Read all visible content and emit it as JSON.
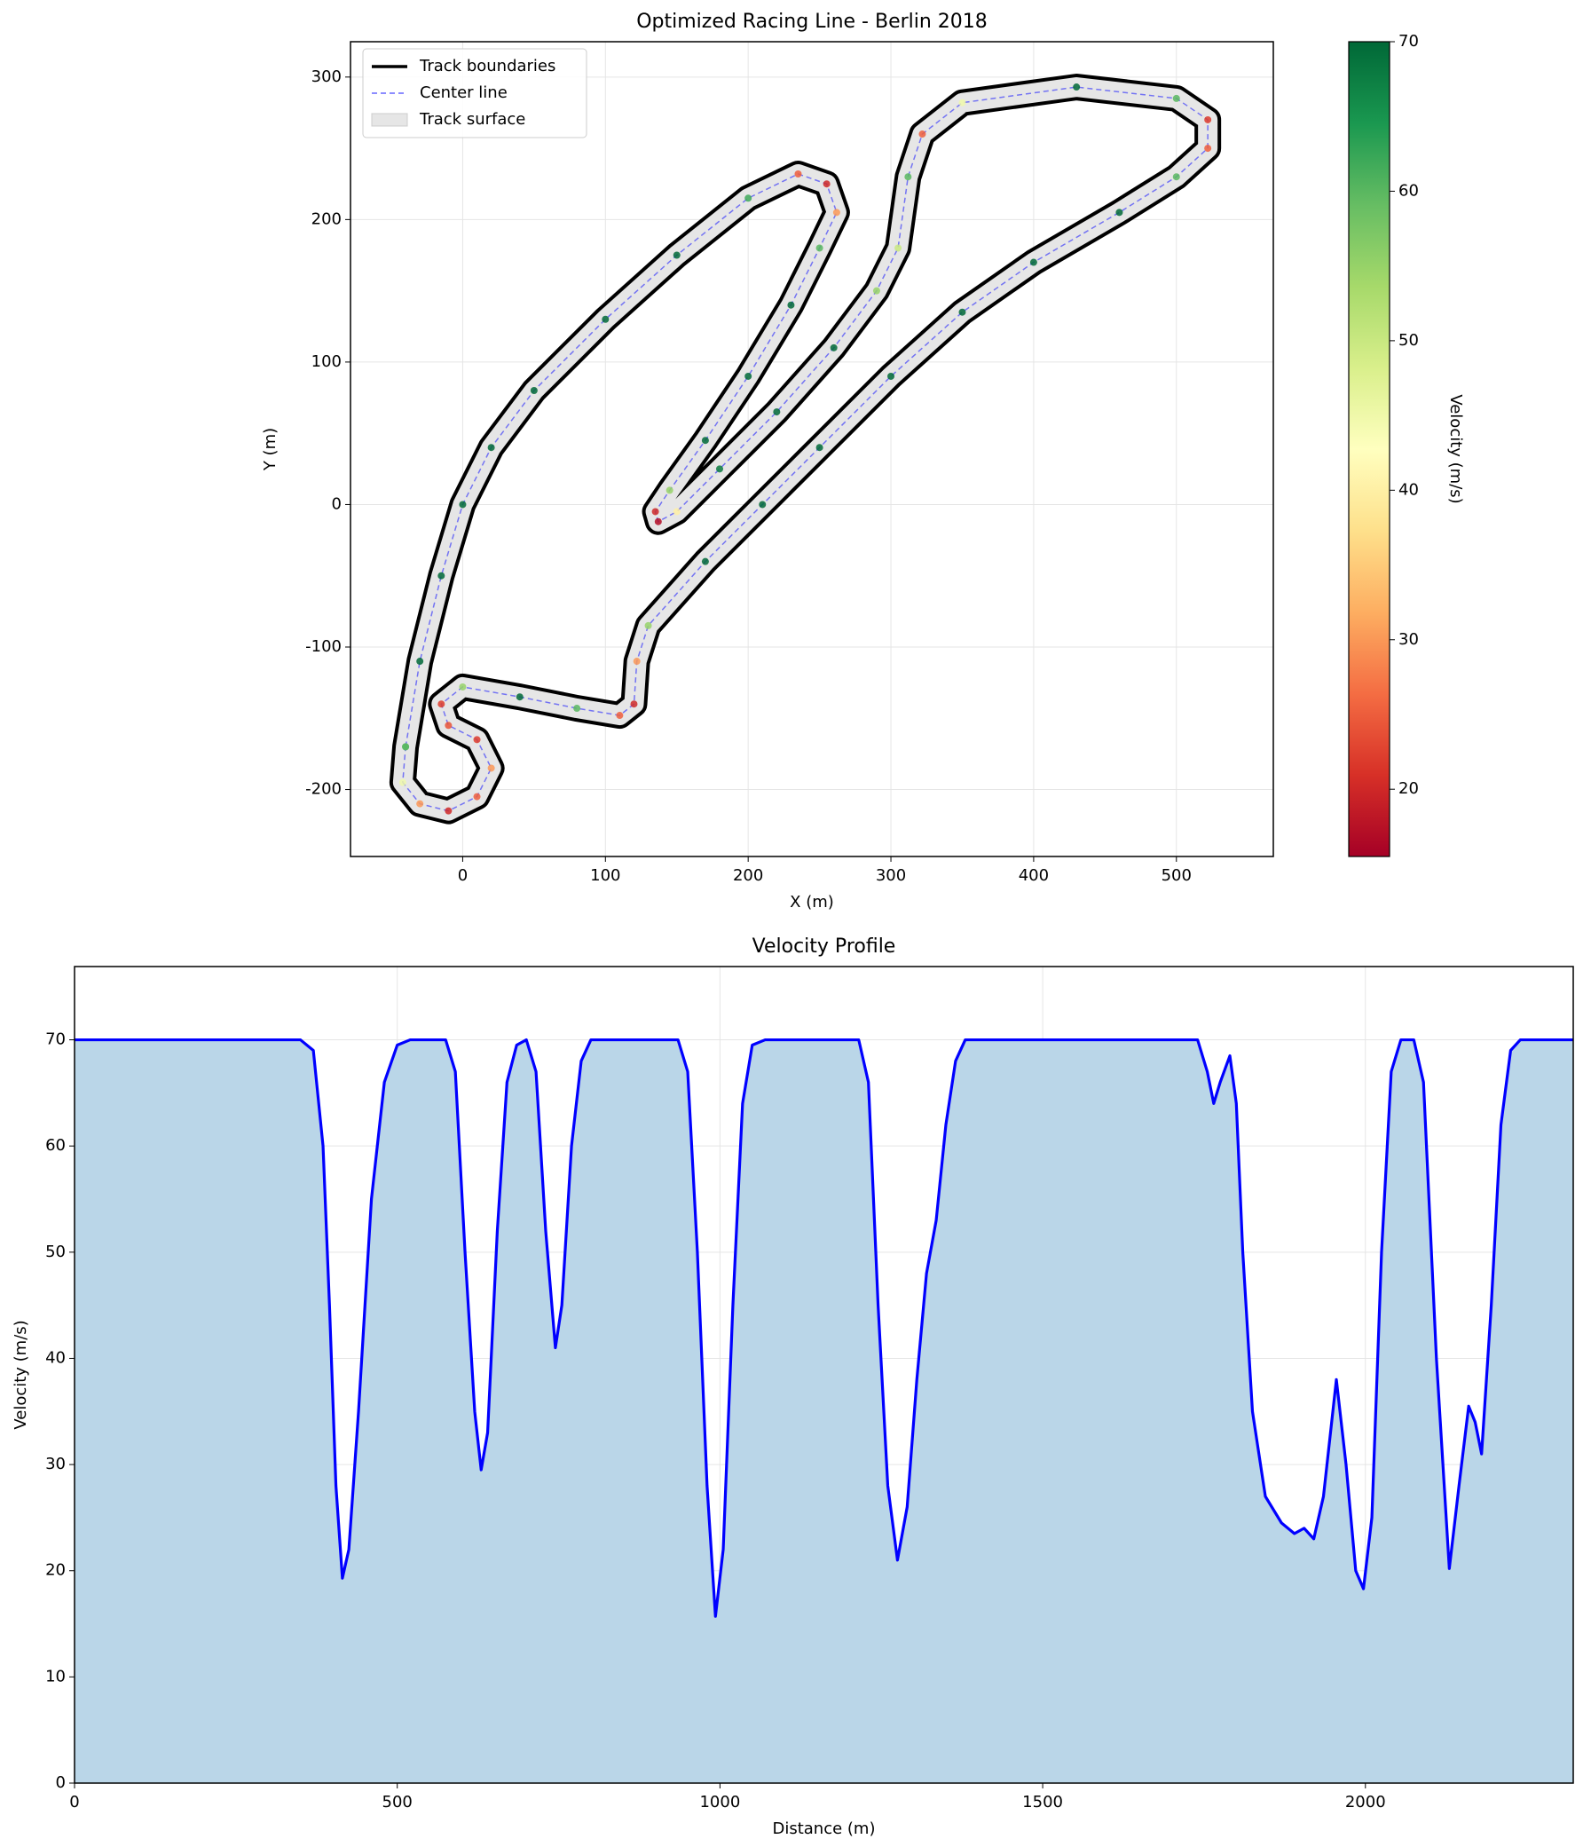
{
  "chart_data": [
    {
      "type": "track",
      "title": "Optimized Racing Line - Berlin 2018",
      "xlabel": "X (m)",
      "ylabel": "Y (m)",
      "xlim": [
        -78.6,
        567.9
      ],
      "ylim": [
        -247,
        324.8
      ],
      "xticks": [
        0,
        100,
        200,
        300,
        400,
        500
      ],
      "yticks": [
        -200,
        -100,
        0,
        100,
        200,
        300
      ],
      "grid": true,
      "legend": "upper left",
      "series": [
        {
          "name": "Track boundaries",
          "color": "#000000"
        },
        {
          "name": "Center line",
          "color": "#0000ff"
        },
        {
          "name": "Track surface",
          "color": "#e6e6e6"
        }
      ],
      "x": [
        -40,
        -30,
        -15,
        0,
        20,
        50,
        100,
        150,
        200,
        235,
        255,
        262,
        250,
        230,
        200,
        170,
        145,
        135,
        137,
        150,
        180,
        220,
        260,
        290,
        305,
        312,
        322,
        350,
        430,
        500,
        522,
        522,
        500,
        460,
        400,
        350,
        300,
        250,
        210,
        170,
        130,
        122,
        120,
        110,
        80,
        40,
        0,
        -15,
        -10,
        10,
        20,
        10,
        -10,
        -30,
        -42,
        -40
      ],
      "y": [
        -170,
        -110,
        -50,
        0,
        40,
        80,
        130,
        175,
        215,
        232,
        225,
        205,
        180,
        140,
        90,
        45,
        10,
        -5,
        -12,
        -5,
        25,
        65,
        110,
        150,
        180,
        230,
        260,
        282,
        293,
        285,
        270,
        250,
        230,
        205,
        170,
        135,
        90,
        40,
        0,
        -40,
        -85,
        -110,
        -140,
        -148,
        -143,
        -135,
        -128,
        -140,
        -155,
        -165,
        -185,
        -205,
        -215,
        -210,
        -195,
        -170
      ],
      "velocity": [
        60,
        70,
        70,
        70,
        70,
        70,
        70,
        70,
        62,
        25,
        20,
        30,
        60,
        70,
        70,
        70,
        55,
        20,
        17,
        40,
        68,
        70,
        70,
        55,
        50,
        60,
        25,
        45,
        70,
        60,
        22,
        25,
        60,
        70,
        70,
        70,
        70,
        70,
        70,
        70,
        55,
        30,
        20,
        25,
        60,
        70,
        55,
        22,
        24,
        22,
        30,
        25,
        20,
        30,
        45,
        60
      ],
      "colorbar": {
        "label": "Velocity (m/s)",
        "clim": [
          15.5,
          70
        ],
        "ticks": [
          20,
          30,
          40,
          50,
          60,
          70
        ]
      }
    },
    {
      "type": "area",
      "title": "Velocity Profile",
      "xlabel": "Distance (m)",
      "ylabel": "Velocity (m/s)",
      "xlim": [
        0,
        2322
      ],
      "ylim": [
        0,
        76.9
      ],
      "xticks": [
        0,
        500,
        1000,
        1500,
        2000
      ],
      "yticks": [
        0,
        10,
        20,
        30,
        40,
        50,
        60,
        70
      ],
      "grid": true,
      "color": "#0000ff",
      "fill_color": "#bad6e8",
      "x": [
        0,
        350,
        370,
        385,
        395,
        405,
        415,
        425,
        440,
        460,
        480,
        500,
        520,
        575,
        590,
        605,
        620,
        630,
        640,
        655,
        670,
        685,
        700,
        715,
        730,
        745,
        755,
        770,
        785,
        800,
        935,
        950,
        965,
        980,
        993,
        1005,
        1020,
        1035,
        1050,
        1070,
        1215,
        1230,
        1245,
        1260,
        1275,
        1290,
        1305,
        1320,
        1335,
        1350,
        1365,
        1380,
        1740,
        1755,
        1765,
        1775,
        1790,
        1800,
        1810,
        1825,
        1845,
        1870,
        1890,
        1905,
        1920,
        1935,
        1955,
        1970,
        1985,
        1997,
        2010,
        2025,
        2040,
        2055,
        2075,
        2090,
        2110,
        2130,
        2145,
        2160,
        2170,
        2180,
        2195,
        2210,
        2225,
        2240,
        2322
      ],
      "values": [
        70,
        70,
        69,
        60,
        45,
        28,
        19.3,
        22,
        35,
        55,
        66,
        69.5,
        70,
        70,
        67,
        50,
        35,
        29.5,
        33,
        52,
        66,
        69.5,
        70,
        67,
        52,
        41,
        45,
        60,
        68,
        70,
        70,
        67,
        50,
        28,
        15.7,
        22,
        45,
        64,
        69.5,
        70,
        70,
        66,
        45,
        28,
        21,
        26,
        38,
        48,
        53,
        62,
        68,
        70,
        70,
        67,
        64,
        66,
        68.5,
        64,
        50,
        35,
        27,
        24.5,
        23.5,
        24,
        23,
        27,
        38,
        30,
        20,
        18.3,
        25,
        50,
        67,
        70,
        70,
        66,
        40,
        20.2,
        28,
        35.5,
        34,
        31,
        45,
        62,
        69,
        70,
        70
      ]
    }
  ]
}
